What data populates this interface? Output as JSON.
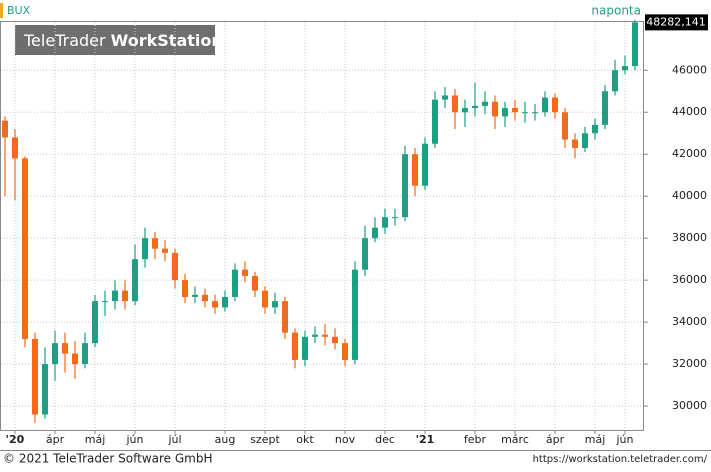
{
  "header": {
    "symbol": "BUX",
    "period": "naponta",
    "watermark_1": "TeleTrader",
    "watermark_2": "WorkStation"
  },
  "chart_data": {
    "type": "candlestick",
    "categories": [
      null,
      "'20",
      null,
      null,
      null,
      "ápr",
      null,
      null,
      null,
      "máj",
      null,
      null,
      null,
      "jún",
      null,
      null,
      null,
      "júl",
      null,
      null,
      null,
      null,
      "aug",
      null,
      null,
      null,
      "szept",
      null,
      null,
      null,
      "okt",
      null,
      null,
      null,
      "nov",
      null,
      null,
      null,
      "dec",
      null,
      null,
      null,
      "'21",
      null,
      null,
      null,
      null,
      "febr",
      null,
      null,
      null,
      "márc",
      null,
      null,
      null,
      "ápr",
      null,
      null,
      null,
      "máj",
      null,
      null,
      "jún",
      null
    ],
    "open": [
      43600,
      42800,
      41800,
      33200,
      29600,
      32000,
      33000,
      32500,
      32000,
      33000,
      35000,
      35000,
      35500,
      35000,
      37000,
      38000,
      37500,
      37300,
      36000,
      35200,
      35300,
      35000,
      34700,
      35200,
      36500,
      36200,
      35500,
      34700,
      35000,
      33500,
      32200,
      33300,
      33400,
      33300,
      33000,
      32200,
      36500,
      38000,
      38500,
      39000,
      39000,
      42000,
      40500,
      42500,
      44600,
      44800,
      44000,
      44200,
      44300,
      44500,
      43800,
      44200,
      44000,
      44000,
      44000,
      44700,
      44000,
      42700,
      42300,
      43000,
      43400,
      45000,
      46000,
      46200
    ],
    "high": [
      43800,
      43200,
      41900,
      33500,
      32800,
      33600,
      33500,
      33100,
      33500,
      35300,
      35500,
      36000,
      36000,
      37700,
      38500,
      38300,
      37900,
      37500,
      36300,
      35700,
      35600,
      35300,
      35500,
      36800,
      36900,
      36400,
      35700,
      35400,
      35200,
      33700,
      33600,
      33800,
      33900,
      33700,
      33200,
      36900,
      38600,
      39000,
      39400,
      39400,
      42400,
      42300,
      42800,
      45000,
      45200,
      45100,
      44600,
      45400,
      45000,
      44800,
      44500,
      44600,
      44500,
      44400,
      45000,
      44900,
      44200,
      43000,
      43300,
      43700,
      45300,
      46500,
      46700,
      48400
    ],
    "low": [
      40000,
      39800,
      32800,
      29200,
      29400,
      31200,
      31600,
      31300,
      31800,
      32800,
      34300,
      34600,
      34600,
      34800,
      36600,
      37000,
      36900,
      35600,
      34900,
      34900,
      34700,
      34400,
      34500,
      35000,
      35900,
      35200,
      34400,
      34400,
      33200,
      31800,
      31900,
      33000,
      32900,
      32700,
      31900,
      32000,
      36200,
      37800,
      38200,
      38600,
      38800,
      40000,
      40300,
      42300,
      44200,
      43200,
      43300,
      43800,
      43900,
      43200,
      43300,
      43600,
      43500,
      43600,
      43800,
      43700,
      42300,
      41800,
      42100,
      42700,
      43200,
      44800,
      45800,
      46000
    ],
    "close": [
      42800,
      41800,
      33200,
      29600,
      32000,
      33000,
      32500,
      32000,
      33000,
      35000,
      35000,
      35500,
      35000,
      37000,
      38000,
      37500,
      37300,
      36000,
      35200,
      35300,
      35000,
      34700,
      35200,
      36500,
      36200,
      35500,
      34700,
      35000,
      33500,
      32200,
      33300,
      33400,
      33300,
      33000,
      32200,
      36500,
      38000,
      38500,
      39000,
      39000,
      42000,
      40500,
      42500,
      44600,
      44800,
      44000,
      44200,
      44300,
      44500,
      43800,
      44200,
      44000,
      44000,
      44000,
      44700,
      44000,
      42700,
      42300,
      43000,
      43400,
      45000,
      46000,
      46200,
      48282.141
    ],
    "last_label": "48282,141",
    "up_color": "#1f9e84",
    "down_color": "#f26a1b",
    "ylim": [
      28860,
      48300
    ],
    "yticks": [
      30000,
      32000,
      34000,
      36000,
      38000,
      40000,
      42000,
      44000,
      46000
    ],
    "grid": true
  },
  "footer": {
    "copyright": "© 2021 TeleTrader Software GmbH",
    "url": "https://workstation.teletrader.com/"
  }
}
